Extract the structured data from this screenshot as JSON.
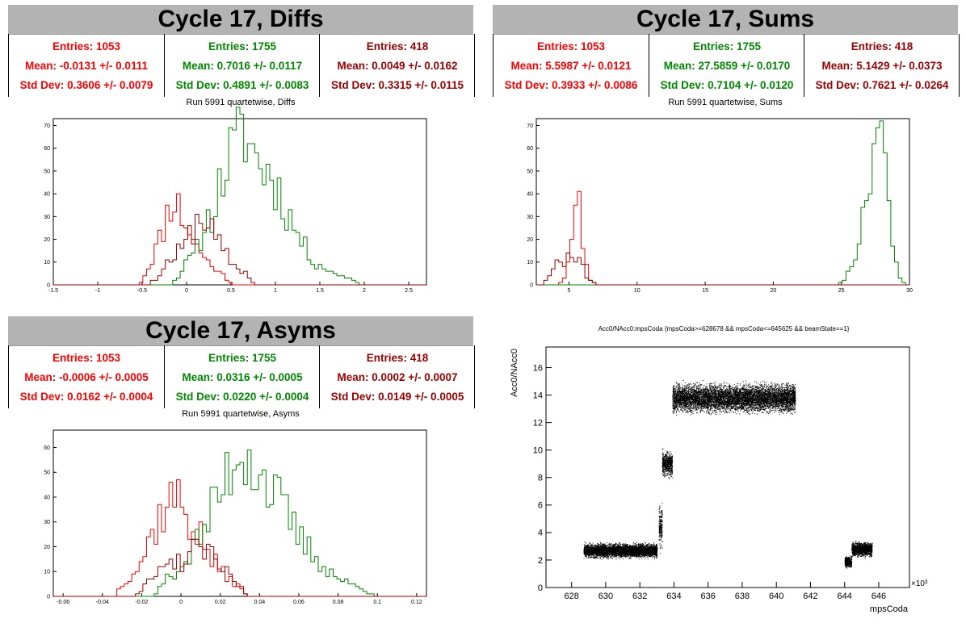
{
  "colors": {
    "red": "#ff0000",
    "green": "#008800",
    "darkred": "#990000",
    "black": "#000000"
  },
  "diffs": {
    "title": "Cycle 17, Diffs",
    "subtitle": "Run 5991 quartetwise, Diffs",
    "stats": [
      {
        "entries": "Entries: 1053",
        "mean": "Mean: -0.0131 +/- 0.0111",
        "std": "Std Dev: 0.3606 +/- 0.0079"
      },
      {
        "entries": "Entries: 1755",
        "mean": "Mean: 0.7016 +/- 0.0117",
        "std": "Std Dev: 0.4891 +/- 0.0083"
      },
      {
        "entries": "Entries: 418",
        "mean": "Mean: 0.0049 +/- 0.0162",
        "std": "Std Dev: 0.3315 +/- 0.0115"
      }
    ]
  },
  "sums": {
    "title": "Cycle 17, Sums",
    "subtitle": "Run 5991 quartetwise, Sums",
    "stats": [
      {
        "entries": "Entries: 1053",
        "mean": "Mean: 5.5987 +/- 0.0121",
        "std": "Std Dev: 0.3933 +/- 0.0086"
      },
      {
        "entries": "Entries: 1755",
        "mean": "Mean: 27.5859 +/- 0.0170",
        "std": "Std Dev: 0.7104 +/- 0.0120"
      },
      {
        "entries": "Entries: 418",
        "mean": "Mean: 5.1429 +/- 0.0373",
        "std": "Std Dev: 0.7621 +/- 0.0264"
      }
    ]
  },
  "asyms": {
    "title": "Cycle 17, Asyms",
    "subtitle": "Run 5991 quartetwise, Asyms",
    "stats": [
      {
        "entries": "Entries: 1053",
        "mean": "Mean: -0.0006 +/- 0.0005",
        "std": "Std Dev: 0.0162 +/- 0.0004"
      },
      {
        "entries": "Entries: 1755",
        "mean": "Mean: 0.0316 +/- 0.0005",
        "std": "Std Dev: 0.0220 +/- 0.0004"
      },
      {
        "entries": "Entries: 418",
        "mean": "Mean: 0.0002 +/- 0.0007",
        "std": "Std Dev: 0.0149 +/- 0.0005"
      }
    ]
  },
  "scatter": {
    "title": "Acc0/NAcc0:mpsCoda {mpsCoda>=628678 && mpsCoda<=645625 && beamState==1}"
  },
  "chart_data": [
    {
      "type": "histogram",
      "id": "diffs",
      "xlim": [
        -1.5,
        2.7
      ],
      "ylim": [
        0,
        73
      ],
      "xticks": [
        -1.5,
        -1,
        -0.5,
        0,
        0.5,
        1,
        1.5,
        2,
        2.5
      ],
      "yticks": [
        0,
        10,
        20,
        30,
        40,
        50,
        60,
        70
      ],
      "series": [
        {
          "color": "#ff0000",
          "peaks": [
            [
              -0.45,
              6
            ],
            [
              -0.3,
              20
            ],
            [
              -0.2,
              33
            ],
            [
              -0.15,
              40
            ],
            [
              -0.1,
              35
            ],
            [
              -0.05,
              30
            ],
            [
              0,
              27
            ],
            [
              0.05,
              22
            ],
            [
              0.1,
              18
            ],
            [
              0.2,
              12
            ],
            [
              0.3,
              8
            ],
            [
              0.45,
              3
            ]
          ]
        },
        {
          "color": "#008800",
          "peaks": [
            [
              -0.1,
              4
            ],
            [
              0.1,
              14
            ],
            [
              0.2,
              25
            ],
            [
              0.3,
              33
            ],
            [
              0.45,
              53
            ],
            [
              0.55,
              60
            ],
            [
              0.6,
              63
            ],
            [
              0.65,
              70
            ],
            [
              0.75,
              58
            ],
            [
              0.9,
              50
            ],
            [
              1.0,
              45
            ],
            [
              1.1,
              35
            ],
            [
              1.25,
              22
            ],
            [
              1.4,
              12
            ],
            [
              1.6,
              6
            ],
            [
              1.9,
              2
            ]
          ]
        },
        {
          "color": "#990000",
          "peaks": [
            [
              -0.35,
              3
            ],
            [
              -0.2,
              10
            ],
            [
              0,
              18
            ],
            [
              0.1,
              28
            ],
            [
              0.2,
              30
            ],
            [
              0.3,
              22
            ],
            [
              0.4,
              15
            ],
            [
              0.55,
              8
            ],
            [
              0.7,
              4
            ]
          ]
        }
      ]
    },
    {
      "type": "histogram",
      "id": "sums",
      "xlim": [
        2.6,
        30
      ],
      "ylim": [
        0,
        73
      ],
      "xticks": [
        5,
        10,
        15,
        20,
        25,
        30
      ],
      "yticks": [
        0,
        10,
        20,
        30,
        40,
        50,
        60,
        70
      ],
      "series": [
        {
          "color": "#ff0000",
          "peaks": [
            [
              4.8,
              5
            ],
            [
              5.1,
              15
            ],
            [
              5.4,
              28
            ],
            [
              5.6,
              37
            ],
            [
              5.8,
              34
            ],
            [
              6.0,
              20
            ],
            [
              6.3,
              8
            ],
            [
              6.6,
              2
            ]
          ]
        },
        {
          "color": "#008800",
          "peaks": [
            [
              25.3,
              3
            ],
            [
              26.0,
              12
            ],
            [
              26.5,
              28
            ],
            [
              27.0,
              50
            ],
            [
              27.4,
              65
            ],
            [
              27.7,
              70
            ],
            [
              28.0,
              58
            ],
            [
              28.4,
              38
            ],
            [
              28.8,
              16
            ],
            [
              29.2,
              4
            ]
          ]
        },
        {
          "color": "#990000",
          "peaks": [
            [
              3.6,
              4
            ],
            [
              4.2,
              12
            ],
            [
              4.7,
              10
            ],
            [
              5.2,
              14
            ],
            [
              5.7,
              12
            ],
            [
              6.1,
              6
            ],
            [
              6.6,
              2
            ]
          ]
        }
      ]
    },
    {
      "type": "histogram",
      "id": "asyms",
      "xlim": [
        -0.065,
        0.125
      ],
      "ylim": [
        0,
        67
      ],
      "xticks": [
        -0.06,
        -0.04,
        -0.02,
        0,
        0.02,
        0.04,
        0.06,
        0.08,
        0.1,
        0.12
      ],
      "yticks": [
        0,
        10,
        20,
        30,
        40,
        50,
        60
      ],
      "series": [
        {
          "color": "#ff0000",
          "peaks": [
            [
              -0.03,
              5
            ],
            [
              -0.02,
              14
            ],
            [
              -0.015,
              25
            ],
            [
              -0.01,
              33
            ],
            [
              -0.005,
              40
            ],
            [
              0,
              38
            ],
            [
              0.005,
              30
            ],
            [
              0.01,
              24
            ],
            [
              0.015,
              16
            ],
            [
              0.02,
              10
            ],
            [
              0.03,
              4
            ]
          ]
        },
        {
          "color": "#008800",
          "peaks": [
            [
              -0.01,
              5
            ],
            [
              0,
              12
            ],
            [
              0.01,
              24
            ],
            [
              0.02,
              42
            ],
            [
              0.025,
              52
            ],
            [
              0.03,
              60
            ],
            [
              0.035,
              58
            ],
            [
              0.04,
              50
            ],
            [
              0.05,
              38
            ],
            [
              0.06,
              24
            ],
            [
              0.07,
              14
            ],
            [
              0.08,
              7
            ],
            [
              0.095,
              2
            ]
          ]
        },
        {
          "color": "#990000",
          "peaks": [
            [
              -0.02,
              3
            ],
            [
              -0.01,
              10
            ],
            [
              0,
              14
            ],
            [
              0.01,
              20
            ],
            [
              0.02,
              12
            ],
            [
              0.03,
              4
            ]
          ]
        }
      ]
    },
    {
      "type": "scatter",
      "id": "acc0",
      "xlabel": "mpsCoda",
      "ylabel": "Acc0/NAcc0",
      "xmultiplier": "×10³",
      "xlim": [
        626.5,
        647.8
      ],
      "ylim": [
        0,
        17.5
      ],
      "xticks": [
        628,
        630,
        632,
        634,
        636,
        638,
        640,
        642,
        644,
        646
      ],
      "yticks": [
        0,
        2,
        4,
        6,
        8,
        10,
        12,
        14,
        16
      ],
      "clusters": [
        {
          "x": [
            628.7,
            633.0
          ],
          "y": [
            2.7,
            0.45
          ]
        },
        {
          "x": [
            633.1,
            633.3
          ],
          "y": [
            4.5,
            1.5
          ]
        },
        {
          "x": [
            633.3,
            633.9
          ],
          "y": [
            9.0,
            0.8
          ]
        },
        {
          "x": [
            633.9,
            641.1
          ],
          "y": [
            13.8,
            0.9
          ]
        },
        {
          "x": [
            644.0,
            644.4
          ],
          "y": [
            1.9,
            0.35
          ]
        },
        {
          "x": [
            644.4,
            645.6
          ],
          "y": [
            2.8,
            0.45
          ]
        }
      ]
    }
  ]
}
